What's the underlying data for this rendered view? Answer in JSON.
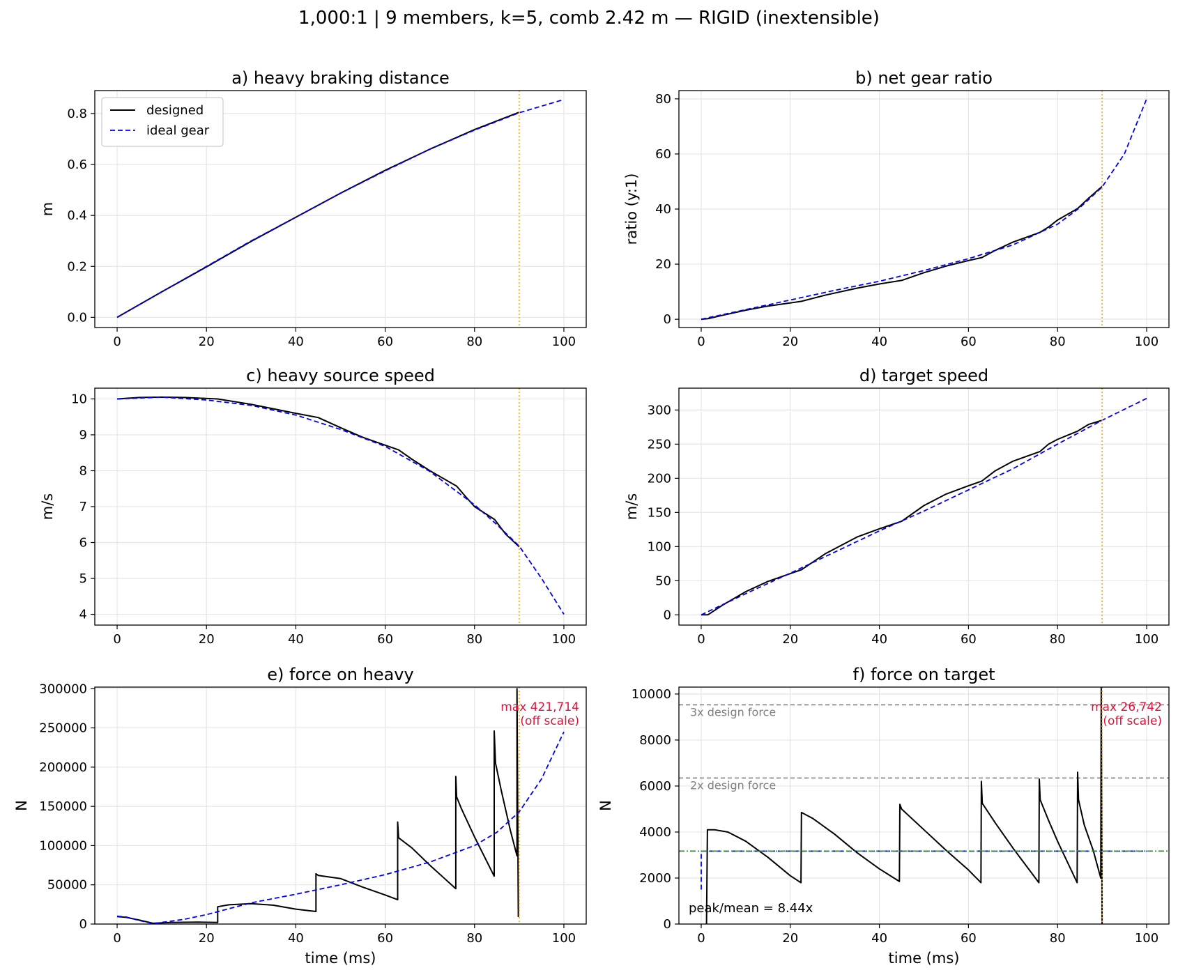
{
  "suptitle": "1,000:1  |  9 members, k=5, comb 2.42 m — RIGID (inextensible)",
  "colors": {
    "designed": "#000000",
    "ideal": "#0000ee",
    "stop_line": "#ffa500",
    "reference": "#808080",
    "mean_line": "#228b22",
    "annotation": "#dc143c",
    "grid": "#e6e6e6"
  },
  "legend": {
    "designed": "designed",
    "ideal": "ideal gear"
  },
  "chart_data": [
    {
      "id": "a",
      "type": "line",
      "title": "a) heavy braking distance",
      "xlabel": "",
      "ylabel": "m",
      "xlim": [
        -5,
        105
      ],
      "ylim": [
        -0.04,
        0.89
      ],
      "xticks": [
        0,
        20,
        40,
        60,
        80,
        100
      ],
      "yticks": [
        0.0,
        0.2,
        0.4,
        0.6,
        0.8
      ],
      "tick_decimals": 1,
      "grid": true,
      "legend": "top-left",
      "vline": 90,
      "series": [
        {
          "role": "designed",
          "x": [
            0,
            10,
            20,
            30,
            40,
            50,
            60,
            70,
            80,
            90
          ],
          "y": [
            0,
            0.1,
            0.198,
            0.298,
            0.393,
            0.487,
            0.577,
            0.66,
            0.737,
            0.805
          ]
        },
        {
          "role": "ideal",
          "x": [
            0,
            10,
            20,
            30,
            40,
            50,
            60,
            70,
            80,
            90,
            100
          ],
          "y": [
            0,
            0.1,
            0.2,
            0.3,
            0.393,
            0.487,
            0.575,
            0.66,
            0.735,
            0.803,
            0.855
          ]
        }
      ]
    },
    {
      "id": "b",
      "type": "line",
      "title": "b) net gear ratio",
      "xlabel": "",
      "ylabel": "ratio (y:1)",
      "xlim": [
        -5,
        105
      ],
      "ylim": [
        -3,
        83
      ],
      "xticks": [
        0,
        20,
        40,
        60,
        80,
        100
      ],
      "yticks": [
        0,
        20,
        40,
        60,
        80
      ],
      "tick_decimals": 0,
      "grid": true,
      "vline": 90,
      "series": [
        {
          "role": "designed",
          "x": [
            0,
            1.5,
            5,
            10,
            15,
            22.5,
            28,
            35,
            40,
            45,
            50,
            55,
            60,
            63,
            66,
            70,
            76,
            78,
            80,
            84.5,
            87,
            90
          ],
          "y": [
            0,
            0.2,
            1.5,
            3.3,
            4.8,
            6.5,
            8.8,
            11.3,
            12.8,
            14.1,
            16.9,
            19.3,
            21.3,
            22.4,
            25,
            28,
            31.5,
            33.5,
            36,
            40.2,
            44,
            48.2
          ]
        },
        {
          "role": "ideal",
          "x": [
            0,
            10,
            20,
            30,
            40,
            50,
            60,
            70,
            80,
            85,
            90,
            95,
            100
          ],
          "y": [
            0,
            3.5,
            7,
            10.5,
            13.8,
            17.7,
            22,
            27,
            34.5,
            40.5,
            48,
            60,
            80
          ]
        }
      ]
    },
    {
      "id": "c",
      "type": "line",
      "title": "c) heavy source speed",
      "xlabel": "",
      "ylabel": "m/s",
      "xlim": [
        -5,
        105
      ],
      "ylim": [
        3.7,
        10.3
      ],
      "xticks": [
        0,
        20,
        40,
        60,
        80,
        100
      ],
      "yticks": [
        4,
        5,
        6,
        7,
        8,
        9,
        10
      ],
      "tick_decimals": 0,
      "grid": true,
      "vline": 90,
      "series": [
        {
          "role": "designed",
          "x": [
            0,
            5,
            10,
            15,
            22.5,
            30,
            40,
            45,
            50,
            55,
            63,
            66,
            70,
            76,
            78,
            80,
            84.5,
            87,
            90
          ],
          "y": [
            10,
            10.04,
            10.05,
            10.04,
            10,
            9.85,
            9.6,
            9.48,
            9.2,
            8.93,
            8.58,
            8.32,
            8.0,
            7.57,
            7.28,
            7.0,
            6.64,
            6.23,
            5.88
          ]
        },
        {
          "role": "ideal",
          "x": [
            0,
            10,
            20,
            30,
            40,
            50,
            60,
            70,
            80,
            85,
            90,
            95,
            100
          ],
          "y": [
            10,
            10.05,
            9.97,
            9.82,
            9.55,
            9.15,
            8.68,
            7.98,
            7.05,
            6.5,
            5.9,
            5.0,
            4.0
          ]
        }
      ]
    },
    {
      "id": "d",
      "type": "line",
      "title": "d) target speed",
      "xlabel": "",
      "ylabel": "m/s",
      "xlim": [
        -5,
        105
      ],
      "ylim": [
        -15,
        332
      ],
      "xticks": [
        0,
        20,
        40,
        60,
        80,
        100
      ],
      "yticks": [
        0,
        50,
        100,
        150,
        200,
        250,
        300
      ],
      "tick_decimals": 0,
      "grid": true,
      "vline": 90,
      "series": [
        {
          "role": "designed",
          "x": [
            0,
            1.5,
            5,
            10,
            15,
            22.5,
            28,
            35,
            40,
            45,
            50,
            55,
            60,
            63,
            66,
            70,
            76,
            78,
            80,
            84.5,
            87,
            90
          ],
          "y": [
            0,
            0,
            15,
            34,
            49,
            66,
            90,
            114,
            126,
            137,
            160,
            177,
            189,
            196,
            211,
            225,
            239,
            250,
            257,
            269,
            279,
            285
          ]
        },
        {
          "role": "ideal",
          "x": [
            0,
            10,
            20,
            30,
            40,
            50,
            60,
            70,
            80,
            90,
            100
          ],
          "y": [
            0,
            31,
            61,
            92,
            123,
            152,
            183,
            214,
            250,
            285,
            317
          ]
        }
      ]
    },
    {
      "id": "e",
      "type": "line",
      "title": "e) force on heavy",
      "xlabel": "time (ms)",
      "ylabel": "N",
      "xlim": [
        -5,
        105
      ],
      "ylim": [
        0,
        302000
      ],
      "xticks": [
        0,
        20,
        40,
        60,
        80,
        100
      ],
      "yticks": [
        0,
        50000,
        100000,
        150000,
        200000,
        250000,
        300000
      ],
      "tick_decimals": 0,
      "grid": true,
      "vline": 90,
      "annotation": [
        "max 421,714",
        "(off scale)"
      ],
      "series": [
        {
          "role": "designed",
          "x": [
            0,
            2,
            5,
            8,
            12,
            18,
            22.5,
            22.5,
            25,
            30,
            35,
            40,
            44.5,
            44.5,
            45,
            50,
            55,
            60,
            62.8,
            62.8,
            63,
            66,
            70,
            75.8,
            75.8,
            76,
            77,
            80,
            84.4,
            84.4,
            84.7,
            86,
            88,
            89.5,
            89.5,
            89.8
          ],
          "y": [
            9500,
            8500,
            5000,
            1000,
            2000,
            2500,
            2000,
            22000,
            24500,
            26000,
            24000,
            19000,
            16000,
            64000,
            62000,
            58000,
            47000,
            37000,
            31000,
            130000,
            110000,
            97000,
            75000,
            45000,
            188000,
            162000,
            148000,
            111000,
            61000,
            246000,
            205000,
            170000,
            120000,
            87000,
            300000,
            9000
          ]
        },
        {
          "role": "ideal",
          "x": [
            0,
            2,
            5,
            8,
            15,
            20,
            30,
            40,
            50,
            60,
            70,
            80,
            85,
            90,
            95,
            100
          ],
          "y": [
            10000,
            9000,
            4500,
            500,
            6000,
            12000,
            27000,
            38000,
            50000,
            63000,
            79000,
            100000,
            117000,
            143000,
            185000,
            245000
          ]
        }
      ]
    },
    {
      "id": "f",
      "type": "line",
      "title": "f) force on target",
      "xlabel": "time (ms)",
      "ylabel": "N",
      "xlim": [
        -5,
        105
      ],
      "ylim": [
        0,
        10300
      ],
      "xticks": [
        0,
        20,
        40,
        60,
        80,
        100
      ],
      "yticks": [
        0,
        2000,
        4000,
        6000,
        8000,
        10000
      ],
      "tick_decimals": 0,
      "grid": true,
      "vline": 90,
      "hlines": [
        {
          "y": 9530,
          "label": "3x design force"
        },
        {
          "y": 6350,
          "label": "2x design force"
        }
      ],
      "mean": 3170,
      "note": "peak/mean = 8.44x",
      "annotation": [
        "max 26,742",
        "(off scale)"
      ],
      "series": [
        {
          "role": "designed",
          "x": [
            1,
            1.2,
            1.4,
            3,
            6,
            10,
            15,
            20,
            22.4,
            22.5,
            25,
            30,
            35,
            40,
            44.5,
            44.6,
            45,
            50,
            55,
            60,
            62.8,
            62.9,
            63.1,
            66,
            70,
            75.8,
            75.9,
            76.1,
            78,
            80,
            84.4,
            84.5,
            84.7,
            86,
            88,
            89.7,
            89.8,
            90
          ],
          "y": [
            0,
            0,
            4100,
            4100,
            4000,
            3600,
            2900,
            2100,
            1800,
            4850,
            4600,
            3900,
            3100,
            2400,
            1850,
            5200,
            5000,
            4100,
            3200,
            2350,
            1800,
            6200,
            5250,
            4400,
            3300,
            1800,
            6300,
            5400,
            4500,
            3600,
            1800,
            6600,
            5400,
            4300,
            3200,
            2000,
            10300,
            0
          ]
        },
        {
          "role": "ideal",
          "x": [
            0,
            0,
            0.1,
            100
          ],
          "y": [
            1500,
            3170,
            3170,
            3170
          ]
        }
      ]
    }
  ]
}
